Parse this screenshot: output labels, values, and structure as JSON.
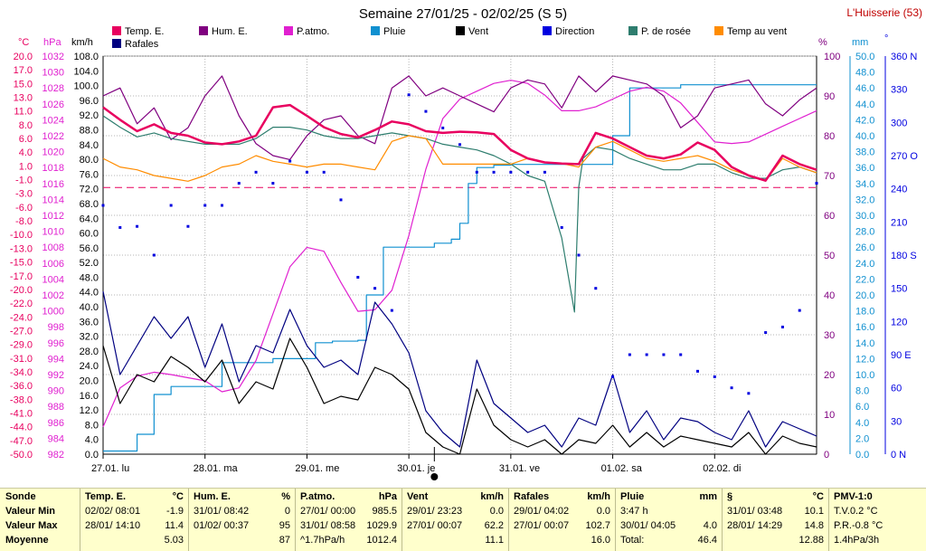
{
  "title": "Semaine 27/01/25 - 02/02/25 (S 5)",
  "station": "L'Huisserie (53)",
  "colors": {
    "temp": "#e8005f",
    "hum": "#800080",
    "patmo": "#e020d0",
    "pluie": "#1090d0",
    "vent": "#000000",
    "direction": "#0000e0",
    "rosee": "#2e7d6e",
    "tempvent": "#ff8c00",
    "rafales": "#000080",
    "grid": "#b5b5b5",
    "hum_axis": "#800080",
    "temp_axis": "#e8005f"
  },
  "legend": [
    {
      "key": "temp",
      "label": "Temp. E."
    },
    {
      "key": "hum",
      "label": "Hum. E."
    },
    {
      "key": "patmo",
      "label": "P.atmo."
    },
    {
      "key": "pluie",
      "label": "Pluie"
    },
    {
      "key": "vent",
      "label": "Vent"
    },
    {
      "key": "direction",
      "label": "Direction"
    },
    {
      "key": "rosee",
      "label": "P. de rosée"
    },
    {
      "key": "tempvent",
      "label": "Temp au vent"
    },
    {
      "key": "rafales",
      "label": "Rafales"
    }
  ],
  "axes": {
    "temp_unit": "°C",
    "hpa_unit": "hPa",
    "kmh_unit": "km/h",
    "pct_unit": "%",
    "mm_unit": "mm",
    "deg_unit": "°",
    "temp_ticks": [
      "20.0",
      "17.0",
      "15.0",
      "13.0",
      "11.0",
      "8.0",
      "6.0",
      "4.0",
      "1.0",
      "-1.0",
      "-3.0",
      "-6.0",
      "-8.0",
      "-10.0",
      "-13.0",
      "-15.0",
      "-17.0",
      "-20.0",
      "-22.0",
      "-24.0",
      "-27.0",
      "-29.0",
      "-31.0",
      "-34.0",
      "-36.0",
      "-38.0",
      "-41.0",
      "-44.0",
      "-47.0",
      "-50.0"
    ],
    "hpa_ticks": [
      "1032",
      "1030",
      "1028",
      "1026",
      "1024",
      "1022",
      "1020",
      "1018",
      "1016",
      "1014",
      "1012",
      "1010",
      "1008",
      "1006",
      "1004",
      "1002",
      "1000",
      "998",
      "996",
      "994",
      "992",
      "990",
      "988",
      "986",
      "984",
      "982"
    ],
    "kmh_ticks": [
      "108.0",
      "104.0",
      "100.0",
      "96.0",
      "92.0",
      "88.0",
      "84.0",
      "80.0",
      "76.0",
      "72.0",
      "68.0",
      "64.0",
      "60.0",
      "56.0",
      "52.0",
      "48.0",
      "44.0",
      "40.0",
      "36.0",
      "32.0",
      "28.0",
      "24.0",
      "20.0",
      "16.0",
      "12.0",
      "8.0",
      "4.0",
      "0.0"
    ],
    "pct_ticks": [
      "100",
      "90",
      "80",
      "70",
      "60",
      "50",
      "40",
      "30",
      "20",
      "10",
      "0"
    ],
    "mm_ticks": [
      "50.0",
      "48.0",
      "46.0",
      "44.0",
      "42.0",
      "40.0",
      "38.0",
      "36.0",
      "34.0",
      "32.0",
      "30.0",
      "28.0",
      "26.0",
      "24.0",
      "22.0",
      "20.0",
      "18.0",
      "16.0",
      "14.0",
      "12.0",
      "10.0",
      "8.0",
      "6.0",
      "4.0",
      "2.0",
      "0.0"
    ],
    "deg_ticks": [
      "360 N",
      "330",
      "300",
      "270 O",
      "240",
      "210",
      "180 S",
      "150",
      "120",
      "90 E",
      "60",
      "30",
      "0 N"
    ],
    "x_ticks": [
      "27.01. lu",
      "28.01. ma",
      "29.01. me",
      "30.01. je",
      "31.01. ve",
      "01.02. sa",
      "02.02. di"
    ]
  },
  "chart_data": {
    "type": "line",
    "title": "Semaine 27/01/25 - 02/02/25 (S 5)",
    "x_unit": "hours since 27.01. 00:00",
    "x_range": [
      0,
      168
    ],
    "categories": [
      "27.01. lu",
      "28.01. ma",
      "29.01. me",
      "30.01. je",
      "31.01. ve",
      "01.02. sa",
      "02.02. di"
    ],
    "ylim_temp_C": [
      -50,
      20
    ],
    "ylim_pressure_hPa": [
      982,
      1033
    ],
    "ylim_wind_kmh": [
      0,
      110
    ],
    "ylim_humidity_pct": [
      0,
      100
    ],
    "ylim_rain_mm": [
      0,
      50
    ],
    "ylim_direction_deg": [
      0,
      360
    ],
    "series": [
      {
        "name": "Temp. E.",
        "key": "temp",
        "axis": "temp",
        "x": [
          0,
          4,
          8,
          12,
          16,
          20,
          24,
          28,
          32,
          36,
          40,
          44,
          48,
          52,
          56,
          60,
          64,
          68,
          72,
          76,
          80,
          84,
          88,
          92,
          96,
          100,
          104,
          108,
          112,
          116,
          120,
          124,
          128,
          132,
          136,
          140,
          144,
          148,
          152,
          156,
          160,
          164,
          168
        ],
        "y": [
          11.0,
          8.8,
          6.8,
          8.0,
          6.5,
          6.0,
          4.8,
          4.5,
          5.0,
          6.0,
          11.0,
          11.4,
          9.5,
          7.5,
          6.3,
          5.7,
          7.0,
          8.5,
          8.0,
          6.8,
          6.5,
          6.7,
          6.6,
          6.3,
          3.5,
          2.0,
          1.3,
          1.1,
          1.0,
          6.5,
          5.5,
          4.0,
          2.5,
          2.0,
          2.7,
          4.8,
          3.5,
          0.5,
          -1.0,
          -1.9,
          2.5,
          1.0,
          0.0
        ]
      },
      {
        "name": "Hum. E.",
        "key": "hum",
        "axis": "pct",
        "x": [
          0,
          4,
          8,
          12,
          16,
          20,
          24,
          28,
          32,
          36,
          40,
          44,
          48,
          52,
          56,
          60,
          64,
          68,
          72,
          76,
          80,
          84,
          88,
          92,
          96,
          100,
          104,
          108,
          112,
          116,
          120,
          124,
          128,
          132,
          136,
          140,
          144,
          148,
          152,
          156,
          160,
          164,
          168
        ],
        "y": [
          90,
          92,
          83,
          87,
          79,
          82,
          90,
          95,
          85,
          78,
          75,
          74,
          80,
          84,
          85,
          80,
          78,
          92,
          95,
          90,
          92,
          90,
          88,
          86,
          92,
          94,
          93,
          87,
          95,
          91,
          95,
          94,
          93,
          90,
          82,
          85,
          92,
          93,
          94,
          88,
          85,
          89,
          92
        ]
      },
      {
        "name": "P.atmo.",
        "key": "patmo",
        "axis": "hpa",
        "x": [
          0,
          4,
          8,
          12,
          16,
          20,
          24,
          28,
          32,
          36,
          40,
          42,
          44,
          48,
          52,
          56,
          60,
          64,
          68,
          72,
          76,
          80,
          84,
          88,
          92,
          96,
          100,
          104,
          108,
          112,
          116,
          120,
          124,
          128,
          132,
          136,
          140,
          144,
          148,
          152,
          156,
          160,
          164,
          168
        ],
        "y": [
          985.5,
          990.5,
          992.0,
          992.5,
          992.2,
          991.8,
          991.4,
          990.0,
          990.5,
          994.0,
          1000.0,
          1003.0,
          1006.0,
          1008.5,
          1008.0,
          1004.0,
          1000.3,
          1000.5,
          1003.0,
          1010.0,
          1018.5,
          1025.0,
          1027.5,
          1028.5,
          1029.5,
          1029.9,
          1029.5,
          1028.0,
          1026.0,
          1026.0,
          1026.5,
          1027.5,
          1028.5,
          1029.0,
          1028.5,
          1027.0,
          1024.5,
          1022.0,
          1021.8,
          1022.0,
          1023.0,
          1024.0,
          1025.0,
          1026.0
        ]
      },
      {
        "name": "Pluie",
        "key": "pluie",
        "axis": "mm",
        "x": [
          0,
          7,
          8,
          12,
          16,
          24,
          28,
          30,
          40,
          50,
          54,
          60,
          62,
          66,
          78,
          82,
          84,
          86,
          88,
          92,
          96,
          104,
          108,
          112,
          113,
          120,
          124,
          128,
          136,
          144,
          156,
          168
        ],
        "y": [
          0.4,
          0.4,
          2.5,
          7.5,
          8.5,
          8.5,
          11.5,
          11.5,
          12.0,
          14.0,
          14.2,
          14.3,
          20.0,
          26.0,
          26.5,
          27.0,
          29.0,
          34.0,
          36.0,
          36.3,
          36.4,
          36.4,
          36.4,
          36.4,
          36.4,
          40.0,
          46.0,
          46.0,
          46.4,
          46.4,
          46.4,
          46.4
        ]
      },
      {
        "name": "Vent",
        "key": "vent",
        "axis": "kmh",
        "x": [
          0,
          4,
          8,
          12,
          16,
          20,
          24,
          28,
          32,
          36,
          40,
          44,
          48,
          52,
          56,
          60,
          64,
          68,
          72,
          76,
          80,
          84,
          88,
          92,
          96,
          100,
          104,
          108,
          112,
          116,
          120,
          124,
          128,
          132,
          136,
          140,
          144,
          148,
          152,
          156,
          160,
          164,
          168
        ],
        "y": [
          30,
          14,
          22,
          20,
          27,
          24,
          20,
          26,
          14,
          20,
          18,
          32,
          24,
          14,
          16,
          15,
          24,
          22,
          18,
          6,
          2,
          0,
          18,
          8,
          4,
          2,
          4,
          0,
          4,
          3,
          8,
          2,
          6,
          2,
          5,
          4,
          3,
          2,
          6,
          0,
          5,
          3,
          2
        ]
      },
      {
        "name": "Direction",
        "key": "direction",
        "axis": "deg",
        "x": [
          0,
          4,
          8,
          12,
          16,
          20,
          24,
          28,
          32,
          36,
          40,
          44,
          48,
          52,
          56,
          60,
          64,
          68,
          72,
          76,
          80,
          84,
          88,
          92,
          96,
          100,
          104,
          108,
          112,
          116,
          120,
          124,
          128,
          132,
          136,
          140,
          144,
          148,
          152,
          156,
          160,
          164,
          168
        ],
        "y": [
          225,
          205,
          206,
          180,
          225,
          206,
          225,
          225,
          245,
          255,
          245,
          265,
          255,
          255,
          230,
          160,
          150,
          130,
          325,
          310,
          295,
          280,
          255,
          255,
          255,
          255,
          255,
          205,
          180,
          150,
          70,
          90,
          90,
          90,
          90,
          75,
          70,
          60,
          55,
          110,
          115,
          130,
          245
        ]
      },
      {
        "name": "P. de rosée",
        "key": "rosee",
        "axis": "temp",
        "x": [
          0,
          4,
          8,
          12,
          16,
          20,
          24,
          28,
          32,
          36,
          40,
          44,
          48,
          52,
          56,
          60,
          64,
          68,
          72,
          76,
          80,
          84,
          88,
          92,
          96,
          100,
          104,
          108,
          111,
          112,
          113,
          116,
          120,
          124,
          128,
          132,
          136,
          140,
          144,
          148,
          152,
          156,
          160,
          164,
          168
        ],
        "y": [
          9.5,
          7.5,
          5.8,
          6.5,
          5.5,
          5.0,
          4.5,
          4.5,
          4.5,
          5.5,
          7.5,
          7.5,
          7.0,
          6.0,
          5.5,
          5.5,
          6.0,
          6.5,
          6.0,
          5.5,
          4.5,
          4.0,
          3.5,
          2.5,
          1.0,
          -1.0,
          -2.0,
          -12.0,
          -25.0,
          -3.0,
          2.0,
          4.0,
          3.5,
          2.0,
          1.0,
          0.0,
          0.0,
          1.0,
          1.0,
          -0.5,
          -1.5,
          -1.5,
          0.0,
          0.5,
          -0.5
        ]
      },
      {
        "name": "Temp au vent",
        "key": "tempvent",
        "axis": "temp",
        "x": [
          0,
          4,
          8,
          12,
          16,
          20,
          24,
          28,
          32,
          36,
          40,
          44,
          48,
          52,
          56,
          60,
          64,
          68,
          72,
          76,
          80,
          84,
          88,
          92,
          96,
          100,
          104,
          108,
          112,
          116,
          120,
          124,
          128,
          132,
          136,
          140,
          144,
          148,
          152,
          156,
          160,
          164,
          168
        ],
        "y": [
          2.0,
          0.5,
          0.0,
          -1.0,
          -1.5,
          -2.0,
          -1.0,
          0.5,
          1.0,
          2.5,
          1.5,
          1.0,
          0.5,
          1.0,
          1.0,
          0.5,
          0.0,
          5.0,
          6.0,
          5.5,
          1.0,
          1.0,
          1.0,
          1.0,
          1.0,
          2.0,
          1.3,
          1.1,
          0.5,
          4.0,
          5.0,
          3.5,
          2.0,
          1.5,
          2.0,
          2.5,
          1.5,
          0.0,
          -1.0,
          -1.9,
          2.0,
          0.5,
          -0.5
        ]
      },
      {
        "name": "Rafales",
        "key": "rafales",
        "axis": "kmh",
        "x": [
          0,
          4,
          8,
          12,
          16,
          20,
          24,
          28,
          32,
          36,
          40,
          44,
          48,
          52,
          56,
          60,
          64,
          68,
          72,
          76,
          80,
          84,
          88,
          92,
          96,
          100,
          104,
          108,
          112,
          116,
          120,
          124,
          128,
          132,
          136,
          140,
          144,
          148,
          152,
          156,
          160,
          164,
          168
        ],
        "y": [
          45,
          22,
          30,
          38,
          32,
          38,
          24,
          36,
          20,
          30,
          28,
          40,
          30,
          24,
          26,
          22,
          42,
          36,
          28,
          12,
          6,
          2,
          26,
          14,
          10,
          6,
          8,
          2,
          10,
          8,
          22,
          6,
          12,
          4,
          10,
          9,
          6,
          4,
          12,
          2,
          9,
          7,
          5
        ]
      }
    ],
    "reference_lines": [
      {
        "name": "humidity 67%",
        "axis": "pct",
        "value": 67
      }
    ]
  },
  "table": {
    "row_labels": [
      "Sonde",
      "Valeur Min",
      "Valeur Max",
      "Moyenne"
    ],
    "columns": [
      {
        "title": "Temp. E.",
        "unit": "°C",
        "min_date": "02/02/ 08:01",
        "min_val": "-1.9",
        "max_date": "28/01/ 14:10",
        "max_val": "11.4",
        "mean_date": "",
        "mean_val": "5.03"
      },
      {
        "title": "Hum. E.",
        "unit": "%",
        "min_date": "31/01/ 08:42",
        "min_val": "0",
        "max_date": "01/02/ 00:37",
        "max_val": "95",
        "mean_date": "",
        "mean_val": "87"
      },
      {
        "title": "P.atmo.",
        "unit": "hPa",
        "min_date": "27/01/ 00:00",
        "min_val": "985.5",
        "max_date": "31/01/ 08:58",
        "max_val": "1029.9",
        "mean_date": "^1.7hPa/h",
        "mean_val": "1012.4"
      },
      {
        "title": "Vent",
        "unit": "km/h",
        "min_date": "29/01/ 23:23",
        "min_val": "0.0",
        "max_date": "27/01/ 00:07",
        "max_val": "62.2",
        "mean_date": "",
        "mean_val": "11.1"
      },
      {
        "title": "Rafales",
        "unit": "km/h",
        "min_date": "29/01/ 04:02",
        "min_val": "0.0",
        "max_date": "27/01/ 00:07",
        "max_val": "102.7",
        "mean_date": "",
        "mean_val": "16.0"
      },
      {
        "title": "Pluie",
        "unit": "mm",
        "min_date": "3:47 h",
        "min_val": "",
        "max_date": "30/01/ 04:05",
        "max_val": "4.0",
        "mean_date": "Total:",
        "mean_val": "46.4"
      },
      {
        "title": "§",
        "unit": "°C",
        "min_date": "31/01/ 03:48",
        "min_val": "10.1",
        "max_date": "28/01/ 14:29",
        "max_val": "14.8",
        "mean_date": "",
        "mean_val": "12.88"
      },
      {
        "title": "PMV-1:0",
        "unit": "",
        "min_date": "T.V.0.2 °C",
        "min_val": "",
        "max_date": "P.R.-0.8 °C",
        "max_val": "",
        "mean_date": "1.4hPa/3h",
        "mean_val": ""
      }
    ]
  }
}
